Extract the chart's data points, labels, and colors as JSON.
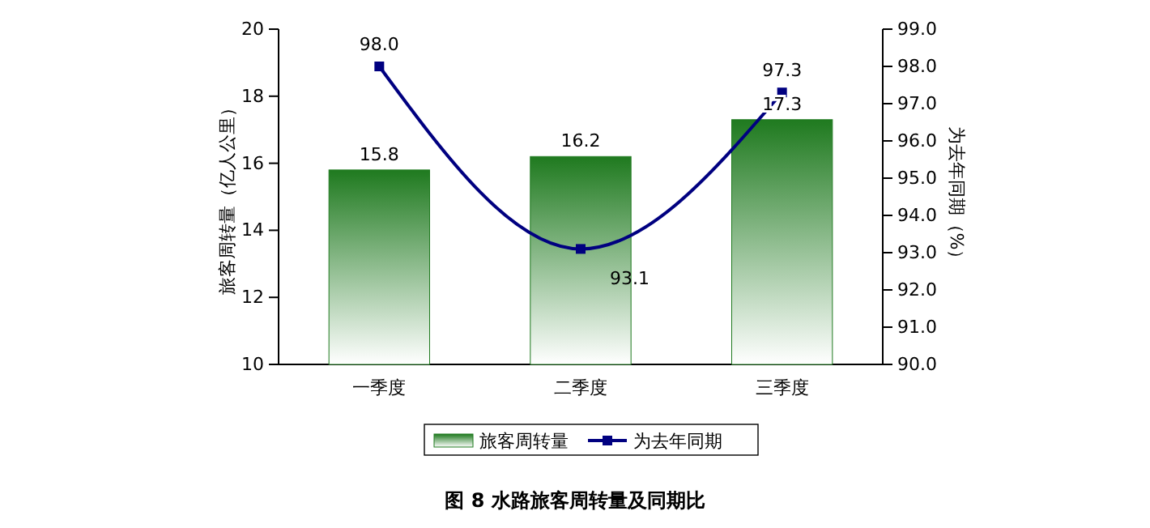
{
  "chart_data": {
    "type": "bar",
    "title": "图 8 水路旅客周转量及同期比",
    "ylabel": "旅客周转量（亿人公里）",
    "y2label": "为去年同期（%）",
    "categories": [
      "一季度",
      "二季度",
      "三季度"
    ],
    "series": [
      {
        "name": "旅客周转量",
        "color": "#1f7a1f",
        "values": [
          15.8,
          16.2,
          17.3
        ]
      },
      {
        "name": "为去年同期",
        "type": "line",
        "axis": "y2",
        "color": "#000080",
        "marker": "square",
        "values": [
          98.0,
          93.1,
          97.3
        ],
        "value_labels": [
          "98.0",
          "93.1",
          "97.3"
        ]
      }
    ],
    "ylim": [
      10,
      20
    ],
    "yticks": [
      10,
      12,
      14,
      16,
      18,
      20
    ],
    "y2lim": [
      90,
      99
    ],
    "y2ticks": [
      {
        "value": 90,
        "label": "90.0"
      },
      {
        "value": 91,
        "label": "91.0"
      },
      {
        "value": 92,
        "label": "92.0"
      },
      {
        "value": 93,
        "label": "93.0"
      },
      {
        "value": 94,
        "label": "94.0"
      },
      {
        "value": 95,
        "label": "95.0"
      },
      {
        "value": 96,
        "label": "96.0"
      },
      {
        "value": 97,
        "label": "97.0"
      },
      {
        "value": 98,
        "label": "98.0"
      },
      {
        "value": 99,
        "label": "99.0"
      }
    ],
    "data_labels": true,
    "legend": "bottom",
    "grid": false
  }
}
